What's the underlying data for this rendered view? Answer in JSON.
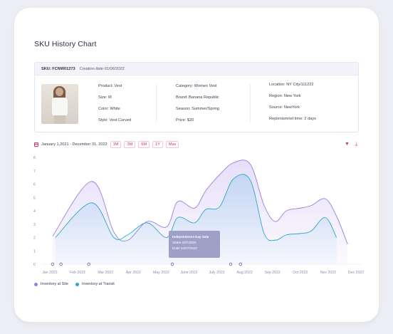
{
  "page": {
    "title": "SKU History Chart"
  },
  "sku": {
    "code": "SKU: FCNW01273",
    "creation": "Creation date 01/06/2022",
    "col1": [
      "Product: Vest",
      "Size: M",
      "Color: White",
      "Style: Vest Curved"
    ],
    "col2": [
      "Category: Women Vest",
      "Brand: Banana Republic",
      "Season: Summer/Spring",
      "Price:  $20"
    ],
    "col3": [
      "Location:  NY City/111222",
      "Region: New York",
      "Source: NewYork",
      "Replenismnet time: 2 days"
    ]
  },
  "range": {
    "label": "January 1,2021 - December 31, 2022",
    "buttons": [
      "1M",
      "3M",
      "6M",
      "1Y",
      "Max"
    ]
  },
  "colors": {
    "accent": "#d6336c",
    "site": "#9b7fdf",
    "transit": "#2ea7c7"
  },
  "icons": {
    "calendar": "calendar-icon",
    "filter": "filter-icon",
    "download": "download-icon"
  },
  "tooltip": {
    "title": "Independence Day Sale",
    "starts": "Starts 4/07/2022",
    "ends": "Ends 14/07/2022"
  },
  "chart_data": {
    "type": "area",
    "x": [
      "Jan 2022",
      "Feb 2022",
      "Mar 2022",
      "Apr 2022",
      "May 2022",
      "June 2022",
      "July 2022",
      "Aug 2022",
      "Sep 2022",
      "Oct 2022",
      "Nov 2022",
      "Dec 2022"
    ],
    "ylim": [
      0,
      8
    ],
    "yticks": [
      "0",
      "1",
      "2",
      "3",
      "4",
      "5",
      "6",
      "7",
      "8"
    ],
    "series": [
      {
        "name": "Inventory at Site",
        "color": "#9b7fdf",
        "points": [
          [
            0.1,
            2.1
          ],
          [
            1.5,
            6.2
          ],
          [
            2.3,
            2.4
          ],
          [
            2.8,
            1.8
          ],
          [
            3.5,
            3.2
          ],
          [
            4.2,
            2.8
          ],
          [
            4.6,
            4.7
          ],
          [
            5.2,
            4.2
          ],
          [
            5.6,
            5.5
          ],
          [
            6.1,
            6.7
          ],
          [
            6.6,
            7.6
          ],
          [
            7.2,
            7.5
          ],
          [
            7.7,
            4.4
          ],
          [
            8.1,
            3.2
          ],
          [
            8.5,
            4.0
          ],
          [
            9.0,
            4.2
          ],
          [
            9.4,
            4.4
          ],
          [
            9.9,
            4.9
          ],
          [
            10.3,
            3.6
          ],
          [
            10.7,
            1.5
          ]
        ]
      },
      {
        "name": "Inventory at Transit",
        "color": "#2ea7c7",
        "points": [
          [
            0.2,
            2.0
          ],
          [
            1.5,
            4.6
          ],
          [
            2.3,
            2.0
          ],
          [
            2.8,
            2.2
          ],
          [
            3.5,
            3.1
          ],
          [
            4.2,
            2.0
          ],
          [
            4.6,
            3.5
          ],
          [
            5.2,
            3.1
          ],
          [
            5.6,
            4.1
          ],
          [
            6.1,
            4.3
          ],
          [
            6.6,
            6.4
          ],
          [
            7.2,
            6.3
          ],
          [
            7.7,
            2.3
          ],
          [
            8.1,
            1.8
          ],
          [
            8.5,
            2.2
          ],
          [
            9.0,
            2.3
          ],
          [
            9.4,
            2.5
          ],
          [
            9.9,
            3.5
          ],
          [
            10.3,
            2.0
          ]
        ]
      }
    ],
    "event_markers": [
      0.1,
      0.4,
      1.4,
      4.4,
      6.5,
      6.85
    ],
    "legend_position": "bottom-left",
    "grid": false
  }
}
